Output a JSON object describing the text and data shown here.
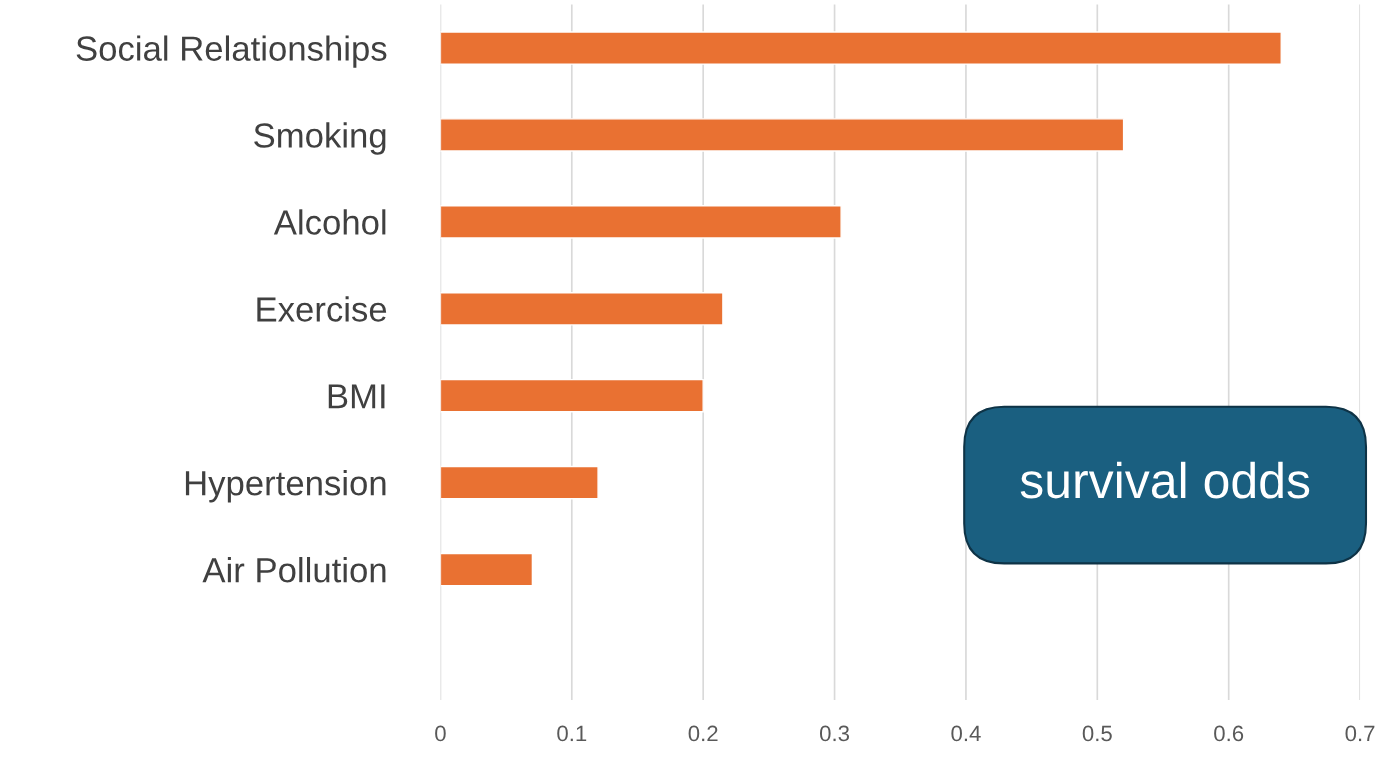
{
  "chart_data": {
    "type": "bar",
    "orientation": "horizontal",
    "categories": [
      "Social Relationships",
      "Smoking",
      "Alcohol",
      "Exercise",
      "BMI",
      "Hypertension",
      "Air Pollution",
      null
    ],
    "values": [
      0.64,
      0.52,
      0.305,
      0.215,
      0.2,
      0.12,
      0.07,
      null
    ],
    "color": "#e97132",
    "xlim": [
      0,
      0.7
    ],
    "xticks": [
      0,
      0.1,
      0.2,
      0.3,
      0.4,
      0.5,
      0.6,
      0.7
    ],
    "grid": "x",
    "annotations": [
      "survival odds"
    ]
  }
}
